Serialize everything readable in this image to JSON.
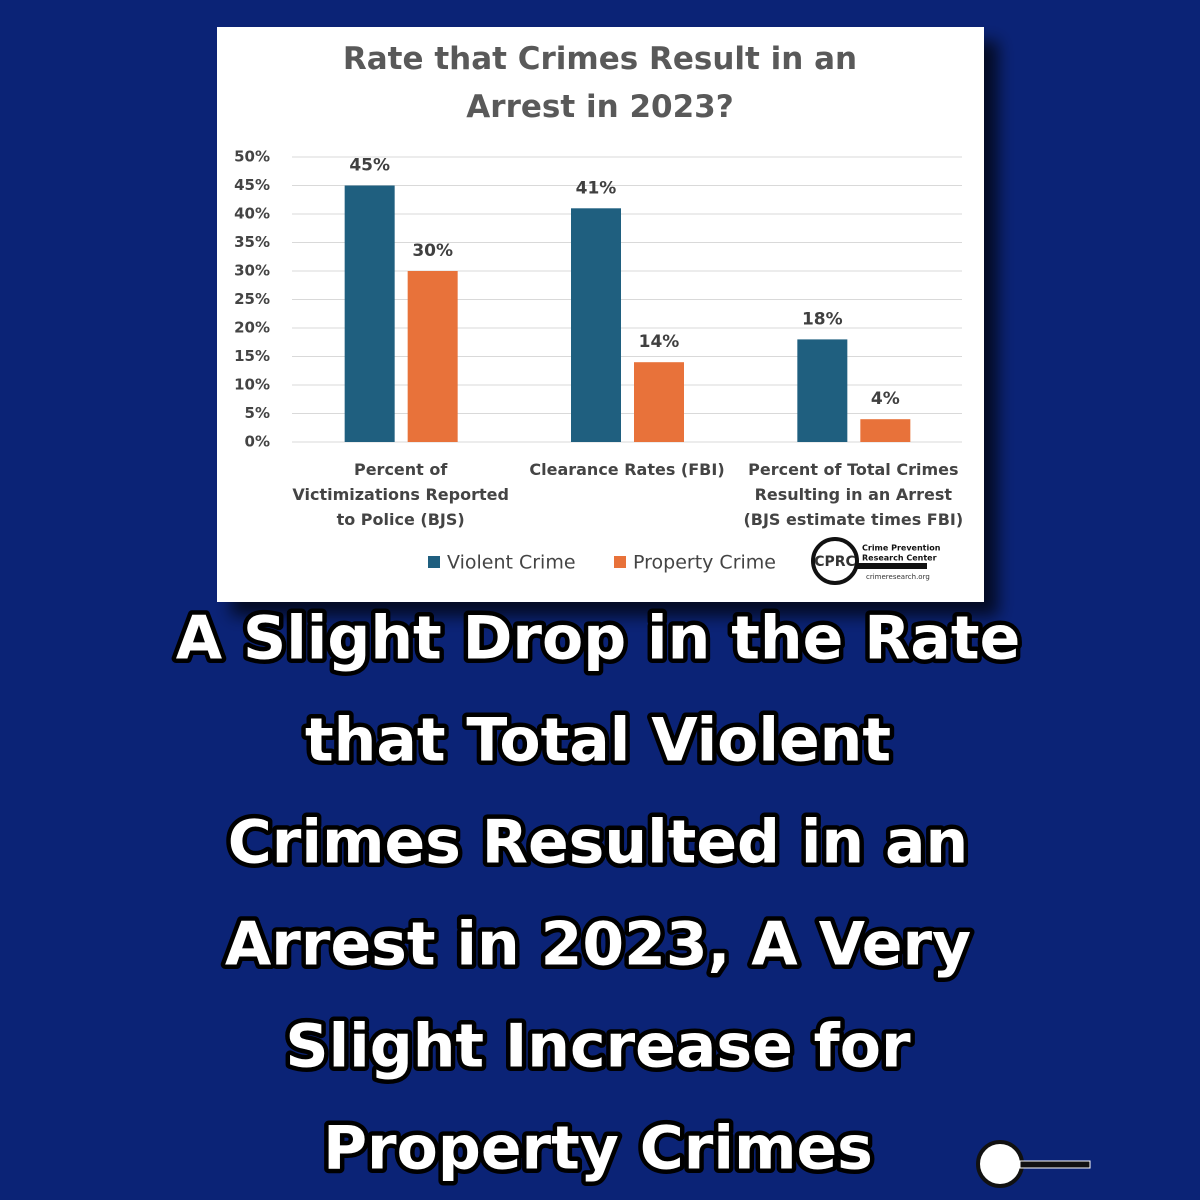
{
  "chart_data": {
    "type": "bar",
    "title": "Rate that Crimes Result in an Arrest in 2023?",
    "categories": [
      "Percent of Victimizations Reported to Police (BJS)",
      "Clearance Rates (FBI)",
      "Percent of Total Crimes Resulting in an Arrest (BJS estimate times FBI)"
    ],
    "series": [
      {
        "name": "Violent Crime",
        "color": "#1f5f7f",
        "values": [
          45,
          41,
          18
        ],
        "value_labels": [
          "45%",
          "41%",
          "18%"
        ]
      },
      {
        "name": "Property Crime",
        "color": "#e8723a",
        "values": [
          30,
          14,
          4
        ],
        "value_labels": [
          "30%",
          "14%",
          "4%"
        ]
      }
    ],
    "ylim": [
      0,
      50
    ],
    "yticks": [
      {
        "value": 0,
        "label": "0%"
      },
      {
        "value": 5,
        "label": "5%"
      },
      {
        "value": 10,
        "label": "10%"
      },
      {
        "value": 15,
        "label": "15%"
      },
      {
        "value": 20,
        "label": "20%"
      },
      {
        "value": 25,
        "label": "25%"
      },
      {
        "value": 30,
        "label": "30%"
      },
      {
        "value": 35,
        "label": "35%"
      },
      {
        "value": 40,
        "label": "40%"
      },
      {
        "value": 45,
        "label": "45%"
      },
      {
        "value": 50,
        "label": "50%"
      }
    ],
    "grid": true,
    "legend": "bottom"
  },
  "logo": {
    "mark": "CPRC",
    "name_lines": [
      "Crime Prevention",
      "Research Center"
    ],
    "url": "crimeresearch.org"
  },
  "headline": {
    "lines": [
      "A Slight Drop in the Rate",
      "that Total Violent",
      "Crimes Resulted in an",
      "Arrest in 2023, A Very",
      "Slight Increase for",
      "Property Crimes"
    ]
  }
}
